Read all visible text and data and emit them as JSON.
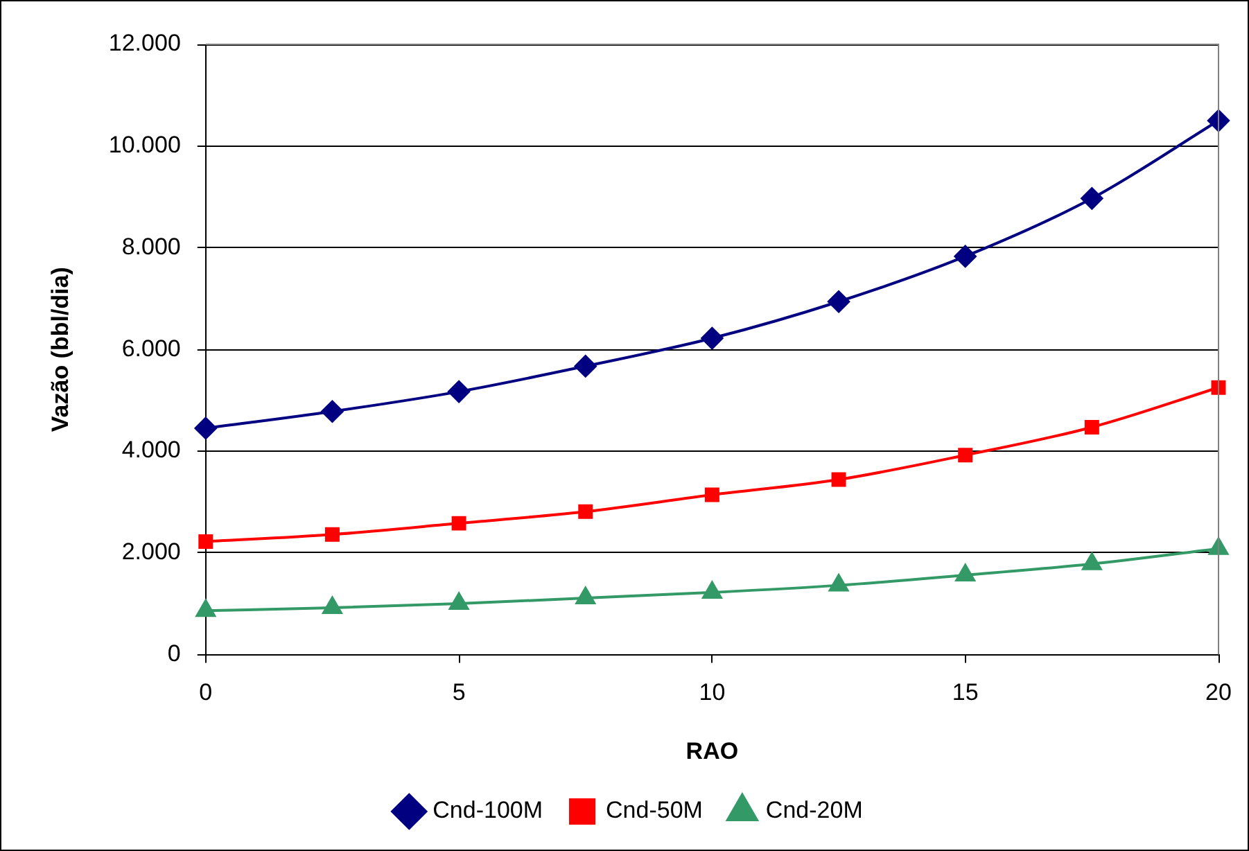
{
  "chart_data": {
    "type": "line",
    "xlabel": "RAO",
    "ylabel": "Vazão (bbl/dia)",
    "x": [
      0,
      2.5,
      5,
      7.5,
      10,
      12.5,
      15,
      17.5,
      20
    ],
    "xlim": [
      0,
      20
    ],
    "xticks": [
      0,
      5,
      10,
      15,
      20
    ],
    "ylim": [
      0,
      12000
    ],
    "yticks": [
      {
        "value": 0,
        "label": "0"
      },
      {
        "value": 2000,
        "label": "2.000"
      },
      {
        "value": 4000,
        "label": "4.000"
      },
      {
        "value": 6000,
        "label": "6.000"
      },
      {
        "value": 8000,
        "label": "8.000"
      },
      {
        "value": 10000,
        "label": "10.000"
      },
      {
        "value": 12000,
        "label": "12.000"
      }
    ],
    "grid": "y",
    "legend": "bottom",
    "line_style": "solid",
    "series": [
      {
        "name": "Cnd-100M",
        "color": "#000080",
        "marker": "diamond",
        "values": [
          4450,
          4780,
          5170,
          5670,
          6220,
          6940,
          7830,
          8970,
          10500
        ]
      },
      {
        "name": "Cnd-50M",
        "color": "#ff0000",
        "marker": "square",
        "values": [
          2220,
          2360,
          2580,
          2810,
          3140,
          3440,
          3920,
          4470,
          5250
        ]
      },
      {
        "name": "Cnd-20M",
        "color": "#339966",
        "marker": "triangle",
        "values": [
          860,
          920,
          1000,
          1110,
          1220,
          1360,
          1560,
          1780,
          2080
        ]
      }
    ]
  }
}
